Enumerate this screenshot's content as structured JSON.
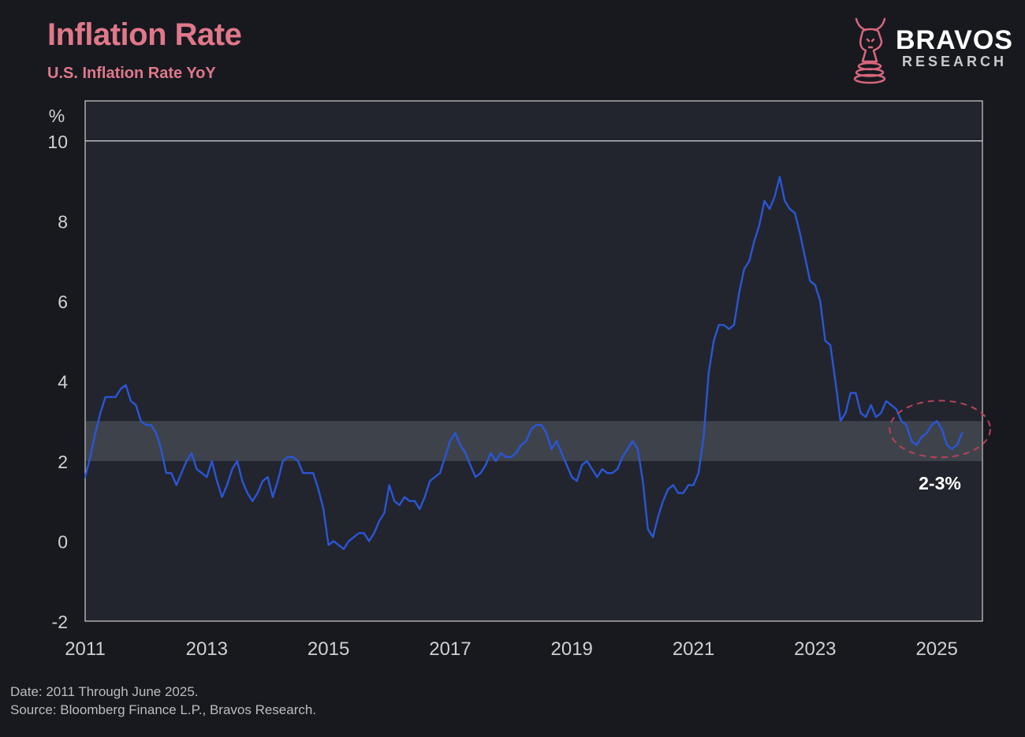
{
  "header": {
    "title": "Inflation Rate",
    "subtitle": "U.S. Inflation Rate YoY"
  },
  "logo": {
    "word": "BRAVOS",
    "sub": "RESEARCH",
    "icon": "bull-chess-knight-icon",
    "color": "#d8677c"
  },
  "footer": {
    "date_note": "Date: 2011 Through June 2025.",
    "source_note": "Source: Bloomberg Finance L.P., Bravos Research."
  },
  "chart_data": {
    "type": "line",
    "title": "Inflation Rate",
    "subtitle": "U.S. Inflation Rate YoY",
    "ylabel": "%",
    "ylim": [
      -2,
      11
    ],
    "xlim": [
      2011.0,
      2025.75
    ],
    "y_ticks": [
      "-2",
      "0",
      "2",
      "4",
      "6",
      "8",
      "10"
    ],
    "y_tick_values": [
      -2,
      0,
      2,
      4,
      6,
      8,
      10
    ],
    "x_ticks": [
      "2011",
      "2013",
      "2015",
      "2017",
      "2019",
      "2021",
      "2023",
      "2025"
    ],
    "x_tick_values": [
      2011,
      2013,
      2015,
      2017,
      2019,
      2021,
      2023,
      2025
    ],
    "grid": false,
    "reference_line": {
      "y": 10
    },
    "target_band": {
      "y_from": 2,
      "y_to": 3,
      "label": "2-3%"
    },
    "highlight": {
      "shape": "dashed-ellipse",
      "x_from": 2024.2,
      "x_to": 2025.75,
      "y_center": 2.8
    },
    "colors": {
      "line": "#2a56d6",
      "plot_background": "#22252d",
      "band": "#40444d",
      "highlight": "#b8405a",
      "axis": "#c8c8c8"
    },
    "series": [
      {
        "name": "",
        "x": [
          2011.0,
          2011.083,
          2011.167,
          2011.25,
          2011.333,
          2011.417,
          2011.5,
          2011.583,
          2011.667,
          2011.75,
          2011.833,
          2011.917,
          2012.0,
          2012.083,
          2012.167,
          2012.25,
          2012.333,
          2012.417,
          2012.5,
          2012.583,
          2012.667,
          2012.75,
          2012.833,
          2012.917,
          2013.0,
          2013.083,
          2013.167,
          2013.25,
          2013.333,
          2013.417,
          2013.5,
          2013.583,
          2013.667,
          2013.75,
          2013.833,
          2013.917,
          2014.0,
          2014.083,
          2014.167,
          2014.25,
          2014.333,
          2014.417,
          2014.5,
          2014.583,
          2014.667,
          2014.75,
          2014.833,
          2014.917,
          2015.0,
          2015.083,
          2015.167,
          2015.25,
          2015.333,
          2015.417,
          2015.5,
          2015.583,
          2015.667,
          2015.75,
          2015.833,
          2015.917,
          2016.0,
          2016.083,
          2016.167,
          2016.25,
          2016.333,
          2016.417,
          2016.5,
          2016.583,
          2016.667,
          2016.75,
          2016.833,
          2016.917,
          2017.0,
          2017.083,
          2017.167,
          2017.25,
          2017.333,
          2017.417,
          2017.5,
          2017.583,
          2017.667,
          2017.75,
          2017.833,
          2017.917,
          2018.0,
          2018.083,
          2018.167,
          2018.25,
          2018.333,
          2018.417,
          2018.5,
          2018.583,
          2018.667,
          2018.75,
          2018.833,
          2018.917,
          2019.0,
          2019.083,
          2019.167,
          2019.25,
          2019.333,
          2019.417,
          2019.5,
          2019.583,
          2019.667,
          2019.75,
          2019.833,
          2019.917,
          2020.0,
          2020.083,
          2020.167,
          2020.25,
          2020.333,
          2020.417,
          2020.5,
          2020.583,
          2020.667,
          2020.75,
          2020.833,
          2020.917,
          2021.0,
          2021.083,
          2021.167,
          2021.25,
          2021.333,
          2021.417,
          2021.5,
          2021.583,
          2021.667,
          2021.75,
          2021.833,
          2021.917,
          2022.0,
          2022.083,
          2022.167,
          2022.25,
          2022.333,
          2022.417,
          2022.5,
          2022.583,
          2022.667,
          2022.75,
          2022.833,
          2022.917,
          2023.0,
          2023.083,
          2023.167,
          2023.25,
          2023.333,
          2023.417,
          2023.5,
          2023.583,
          2023.667,
          2023.75,
          2023.833,
          2023.917,
          2024.0,
          2024.083,
          2024.167,
          2024.25,
          2024.333,
          2024.417,
          2024.5,
          2024.583,
          2024.667,
          2024.75,
          2024.833,
          2024.917,
          2025.0,
          2025.083,
          2025.167,
          2025.25,
          2025.333,
          2025.417
        ],
        "values": [
          1.6,
          2.1,
          2.7,
          3.2,
          3.6,
          3.6,
          3.6,
          3.8,
          3.9,
          3.5,
          3.4,
          3.0,
          2.9,
          2.9,
          2.7,
          2.3,
          1.7,
          1.7,
          1.4,
          1.7,
          2.0,
          2.2,
          1.8,
          1.7,
          1.6,
          2.0,
          1.5,
          1.1,
          1.4,
          1.8,
          2.0,
          1.5,
          1.2,
          1.0,
          1.2,
          1.5,
          1.6,
          1.1,
          1.5,
          2.0,
          2.1,
          2.1,
          2.0,
          1.7,
          1.7,
          1.7,
          1.3,
          0.8,
          -0.1,
          0.0,
          -0.1,
          -0.2,
          0.0,
          0.1,
          0.2,
          0.2,
          0.0,
          0.2,
          0.5,
          0.7,
          1.4,
          1.0,
          0.9,
          1.1,
          1.0,
          1.0,
          0.8,
          1.1,
          1.5,
          1.6,
          1.7,
          2.1,
          2.5,
          2.7,
          2.4,
          2.2,
          1.9,
          1.6,
          1.7,
          1.9,
          2.2,
          2.0,
          2.2,
          2.1,
          2.1,
          2.2,
          2.4,
          2.5,
          2.8,
          2.9,
          2.9,
          2.7,
          2.3,
          2.5,
          2.2,
          1.9,
          1.6,
          1.5,
          1.9,
          2.0,
          1.8,
          1.6,
          1.8,
          1.7,
          1.7,
          1.8,
          2.1,
          2.3,
          2.5,
          2.3,
          1.5,
          0.3,
          0.1,
          0.6,
          1.0,
          1.3,
          1.4,
          1.2,
          1.2,
          1.4,
          1.4,
          1.7,
          2.6,
          4.2,
          5.0,
          5.4,
          5.4,
          5.3,
          5.4,
          6.2,
          6.8,
          7.0,
          7.5,
          7.9,
          8.5,
          8.3,
          8.6,
          9.1,
          8.5,
          8.3,
          8.2,
          7.7,
          7.1,
          6.5,
          6.4,
          6.0,
          5.0,
          4.9,
          4.0,
          3.0,
          3.2,
          3.7,
          3.7,
          3.2,
          3.1,
          3.4,
          3.1,
          3.2,
          3.5,
          3.4,
          3.3,
          3.0,
          2.9,
          2.5,
          2.4,
          2.6,
          2.7,
          2.9,
          3.0,
          2.8,
          2.4,
          2.3,
          2.4,
          2.7
        ]
      }
    ]
  }
}
